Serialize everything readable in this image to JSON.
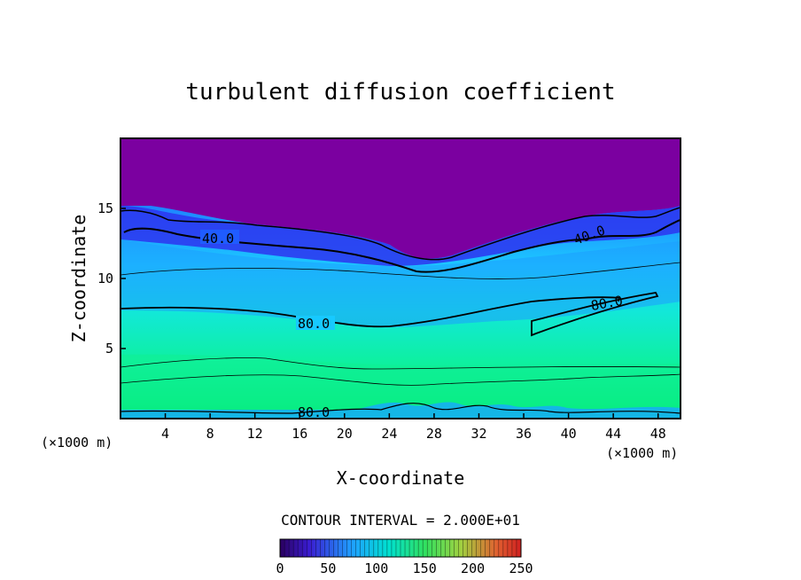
{
  "chart_data": {
    "type": "heatmap",
    "title": "turbulent diffusion coefficient",
    "xlabel": "X-coordinate",
    "ylabel": "Z-coordinate",
    "x_unit": "(×1000 m)",
    "y_unit": "(×1000 m)",
    "xlim": [
      0,
      50
    ],
    "ylim": [
      0,
      20
    ],
    "x_ticks": [
      "4",
      "8",
      "12",
      "16",
      "20",
      "24",
      "28",
      "32",
      "36",
      "40",
      "44",
      "48"
    ],
    "y_ticks": [
      "5",
      "10",
      "15"
    ],
    "contour_interval": "CONTOUR INTERVAL = 2.000E+01",
    "contour_labels": [
      "40.0",
      "40.0",
      "80.0",
      "80.0",
      "80.0"
    ],
    "colorbar": {
      "min": 0,
      "max": 250,
      "ticks": [
        "0",
        "50",
        "100",
        "150",
        "200",
        "250"
      ]
    },
    "layers": [
      {
        "region": "upper",
        "z_top": 20,
        "z_bottom": 15,
        "value": 0
      },
      {
        "region": "top-transition",
        "z_approx": [
          11,
          15
        ],
        "value": 40
      },
      {
        "region": "mid",
        "z_approx": [
          8,
          11
        ],
        "value": 70
      },
      {
        "region": "lower-mid",
        "z_approx": [
          4,
          8
        ],
        "value": 95
      },
      {
        "region": "near-surface",
        "z_approx": [
          0,
          4
        ],
        "value": 130
      }
    ],
    "colors": {
      "upper": "#7b00a0",
      "blue": "#1a3cff",
      "cyan": "#00d8ff",
      "green": "#00e87a"
    }
  }
}
